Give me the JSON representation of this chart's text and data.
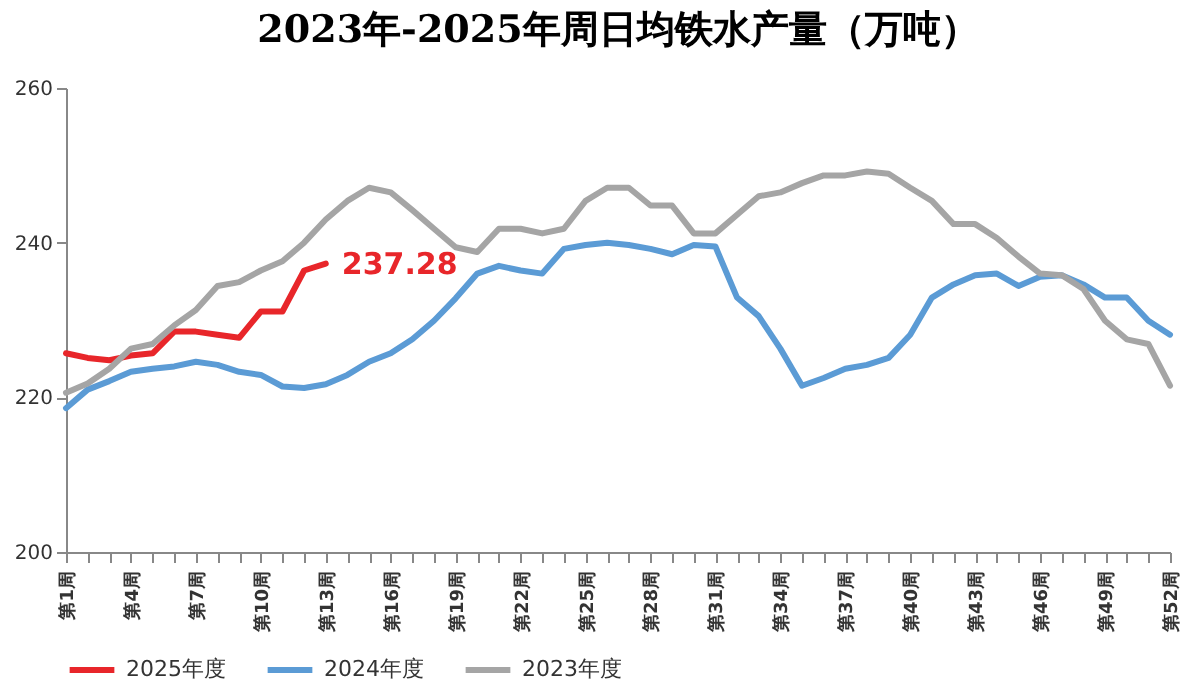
{
  "chart_data": {
    "type": "line",
    "title": "2023年-2025年周日均铁水产量（万吨）",
    "categories": [
      "第1周",
      null,
      null,
      "第4周",
      null,
      null,
      "第7周",
      null,
      null,
      "第10周",
      null,
      null,
      "第13周",
      null,
      null,
      "第16周",
      null,
      null,
      "第19周",
      null,
      null,
      "第22周",
      null,
      null,
      "第25周",
      null,
      null,
      "第28周",
      null,
      null,
      "第31周",
      null,
      null,
      "第34周",
      null,
      null,
      "第37周",
      null,
      null,
      "第40周",
      null,
      null,
      "第43周",
      null,
      null,
      "第46周",
      null,
      null,
      "第49周",
      null,
      null,
      "第52周"
    ],
    "series": [
      {
        "name": "2025年度",
        "color": "#e8262a",
        "values": [
          225.7,
          225.1,
          224.8,
          225.4,
          225.7,
          228.5,
          228.5,
          228.1,
          227.7,
          231.1,
          231.1,
          236.4,
          237.28,
          null,
          null,
          null,
          null,
          null,
          null,
          null,
          null,
          null,
          null,
          null,
          null,
          null,
          null,
          null,
          null,
          null,
          null,
          null,
          null,
          null,
          null,
          null,
          null,
          null,
          null,
          null,
          null,
          null,
          null,
          null,
          null,
          null,
          null,
          null,
          null,
          null,
          null,
          null
        ]
      },
      {
        "name": "2024年度",
        "color": "#5b9bd5",
        "values": [
          218.6,
          221,
          222.1,
          223.3,
          223.7,
          224,
          224.6,
          224.2,
          223.3,
          222.9,
          221.4,
          221.2,
          221.7,
          222.9,
          224.6,
          225.7,
          227.5,
          229.9,
          232.8,
          236,
          237,
          236.4,
          236,
          239.2,
          239.7,
          240,
          239.7,
          239.2,
          238.5,
          239.7,
          239.5,
          232.9,
          230.5,
          226.3,
          221.5,
          222.5,
          223.7,
          224.2,
          225.1,
          228.1,
          232.9,
          234.6,
          235.8,
          236,
          234.4,
          235.6,
          235.8,
          234.6,
          232.9,
          232.9,
          229.9,
          228.1
        ]
      },
      {
        "name": "2023年度",
        "color": "#a5a5a5",
        "values": [
          220.6,
          221.8,
          223.7,
          226.3,
          226.9,
          229.3,
          231.3,
          234.4,
          234.9,
          236.4,
          237.6,
          240,
          243,
          245.4,
          247.1,
          246.5,
          244.2,
          241.8,
          239.4,
          238.8,
          241.8,
          241.8,
          241.2,
          241.8,
          245.4,
          247.1,
          247.1,
          244.8,
          244.8,
          241.2,
          241.2,
          243.6,
          246,
          246.5,
          247.7,
          248.7,
          248.7,
          249.2,
          248.9,
          247.1,
          245.4,
          242.4,
          242.4,
          240.6,
          238.2,
          236,
          235.8,
          234,
          229.9,
          227.5,
          226.9,
          221.5
        ]
      }
    ],
    "ylim": [
      200,
      260
    ],
    "yticks": [
      200,
      220,
      240,
      260
    ],
    "grid": false,
    "legend": "bottom",
    "line_style": "solid",
    "marker": "none",
    "annotations": [
      {
        "text": "237.28",
        "x": "第13周",
        "y": 237.28
      }
    ]
  }
}
